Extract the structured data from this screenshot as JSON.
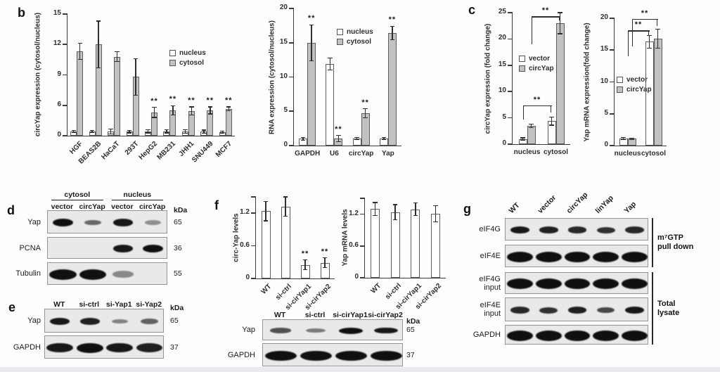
{
  "panels": {
    "b": "b",
    "c": "c",
    "d": "d",
    "e": "e",
    "f": "f",
    "g": "g"
  },
  "colors": {
    "gray_bar": "#c2c2c2",
    "white_bar": "#ffffff",
    "bar_border": "#5c5c5c",
    "axis": "#3a3a3a",
    "band": "#101010",
    "blot_bg": "#e9e9e7",
    "blot_border": "#949494",
    "bottom_strip": "#e8eaf0"
  },
  "chart_data": [
    {
      "id": "b_left",
      "type": "bar",
      "title": "",
      "xlabel": "",
      "ylabel": "circYap expression (cytosol/nucleus)",
      "yticks": [
        0,
        6,
        9,
        12,
        15
      ],
      "ylim": [
        0,
        15
      ],
      "grid": false,
      "categories": [
        "HGF",
        "BEAS2B",
        "HaCaT",
        "293T",
        "HepG2",
        "MB231",
        "JHH1",
        "SNU449",
        "MCF7"
      ],
      "series": [
        {
          "name": "nucleus",
          "color": "white",
          "values": [
            0.8,
            0.8,
            0.85,
            0.8,
            0.85,
            0.85,
            0.8,
            0.8,
            0.75
          ],
          "errors": [
            0.2,
            0.2,
            0.45,
            0.25,
            0.3,
            0.3,
            0.35,
            0.3,
            0.2
          ]
        },
        {
          "name": "cytosol",
          "color": "gray",
          "values": [
            11.3,
            12.0,
            10.8,
            8.8,
            4.6,
            5.0,
            4.9,
            5.0,
            5.3
          ],
          "errors": [
            0.8,
            2.3,
            0.5,
            1.8,
            1.0,
            0.9,
            0.8,
            0.7,
            0.4
          ]
        }
      ],
      "sig": [
        {
          "series": 1,
          "cat": 4,
          "label": "**"
        },
        {
          "series": 1,
          "cat": 5,
          "label": "**"
        },
        {
          "series": 1,
          "cat": 6,
          "label": "**"
        },
        {
          "series": 1,
          "cat": 7,
          "label": "**"
        },
        {
          "series": 1,
          "cat": 8,
          "label": "**"
        }
      ],
      "legend": [
        "nucleus",
        "cytosol"
      ],
      "legend_position": "inside right"
    },
    {
      "id": "b_right",
      "type": "bar",
      "title": "",
      "xlabel": "",
      "ylabel": "RNA expression (cytosol/nucleus)",
      "yticks": [
        0,
        5,
        10,
        15,
        20
      ],
      "ylim": [
        0,
        20
      ],
      "grid": false,
      "categories": [
        "GAPDH",
        "U6",
        "circYap",
        "Yap"
      ],
      "series": [
        {
          "name": "nucleus",
          "color": "white",
          "values": [
            1.0,
            11.9,
            1.0,
            1.0
          ],
          "errors": [
            0.2,
            0.9,
            0.15,
            0.15
          ]
        },
        {
          "name": "cytosol",
          "color": "gray",
          "values": [
            15.0,
            1.0,
            4.7,
            16.4
          ],
          "errors": [
            2.6,
            0.45,
            0.65,
            1.0
          ]
        }
      ],
      "sig": [
        {
          "series": 1,
          "cat": 0,
          "label": "**"
        },
        {
          "series": 1,
          "cat": 1,
          "label": "**"
        },
        {
          "series": 1,
          "cat": 2,
          "label": "**"
        },
        {
          "series": 1,
          "cat": 3,
          "label": "**"
        }
      ],
      "legend": [
        "nucleus",
        "cytosol"
      ],
      "legend_position": "inside top"
    },
    {
      "id": "c_left",
      "type": "bar",
      "title": "",
      "xlabel": "",
      "ylabel": "circYap expression (fold change)",
      "yticks": [
        0,
        5,
        10,
        15,
        20,
        25
      ],
      "ylim": [
        0,
        25
      ],
      "grid": false,
      "categories": [
        "nucleus",
        "cytosol"
      ],
      "series": [
        {
          "name": "vector",
          "color": "white",
          "values": [
            1.0,
            4.4
          ],
          "errors": [
            0.2,
            0.8
          ]
        },
        {
          "name": "circYap",
          "color": "gray",
          "values": [
            3.5,
            23.0
          ],
          "errors": [
            0.35,
            2.0
          ]
        }
      ],
      "sig": [],
      "brackets": [
        {
          "x1": {
            "cat": 0,
            "series": 0
          },
          "x2": {
            "cat": 1,
            "series": 0
          },
          "y": 7.4,
          "label": "**"
        },
        {
          "x1": {
            "cat": 0,
            "series": 1
          },
          "x2": {
            "cat": 1,
            "series": 1
          },
          "y": 24.3,
          "label": "**"
        }
      ],
      "legend": [
        "vector",
        "circYap"
      ],
      "legend_position": "inside middle-left"
    },
    {
      "id": "c_right",
      "type": "bar",
      "title": "",
      "xlabel": "",
      "ylabel": "Yap mRNA expression(fold change)",
      "yticks": [
        0,
        5,
        10,
        15,
        20
      ],
      "ylim": [
        0,
        20
      ],
      "grid": false,
      "categories": [
        "nucleus",
        "cytosol"
      ],
      "series": [
        {
          "name": "vector",
          "color": "white",
          "values": [
            1.1,
            16.3
          ],
          "errors": [
            0.15,
            1.0
          ]
        },
        {
          "name": "circYap",
          "color": "gray",
          "values": [
            1.05,
            16.8
          ],
          "errors": [
            0.15,
            1.5
          ]
        }
      ],
      "sig": [],
      "brackets": [
        {
          "x1": {
            "cat": 0,
            "series": -1
          },
          "x2": {
            "cat": 1,
            "series": 0
          },
          "y": 18.1,
          "label": "**"
        },
        {
          "x1": {
            "cat": 0,
            "series": 1
          },
          "x2": {
            "cat": 1,
            "series": 1
          },
          "y": 19.9,
          "label": "**"
        }
      ],
      "legend": [
        "vector",
        "circYap"
      ],
      "legend_position": "inside middle-left"
    },
    {
      "id": "f_left",
      "type": "bar",
      "title": "",
      "xlabel": "",
      "ylabel": "circ-Yap levels",
      "yticks": [
        0,
        0.6,
        1.2
      ],
      "ylim": [
        0,
        1.5
      ],
      "grid": false,
      "categories": [
        "WT",
        "si-ctrl",
        "si-cirYap1",
        "si-cirYap2"
      ],
      "series": [
        {
          "name": "",
          "color": "white",
          "values": [
            1.24,
            1.32,
            0.25,
            0.29
          ],
          "errors": [
            0.18,
            0.18,
            0.09,
            0.09
          ]
        }
      ],
      "sig": [
        {
          "series": 0,
          "cat": 2,
          "label": "**"
        },
        {
          "series": 0,
          "cat": 3,
          "label": "**"
        }
      ]
    },
    {
      "id": "f_right",
      "type": "bar",
      "title": "",
      "xlabel": "",
      "ylabel": "Yap mRNA levels",
      "yticks": [
        0,
        0.6,
        1.2
      ],
      "ylim": [
        0,
        1.5
      ],
      "grid": false,
      "categories": [
        "WT",
        "si-ctrl",
        "si-cirYap1",
        "si-cirYap2"
      ],
      "series": [
        {
          "name": "",
          "color": "white",
          "values": [
            1.3,
            1.24,
            1.29,
            1.21
          ],
          "errors": [
            0.12,
            0.14,
            0.12,
            0.15
          ]
        }
      ],
      "sig": []
    }
  ],
  "blots": {
    "d": {
      "group_headers": [
        {
          "label": "cytosol",
          "from": 0,
          "to": 1
        },
        {
          "label": "nucleus",
          "from": 2,
          "to": 3
        }
      ],
      "lanes": [
        "vector",
        "circYap",
        "vector",
        "circYap"
      ],
      "kda_header": "kDa",
      "rows": [
        {
          "label_lines": [
            "Yap"
          ],
          "kda": "65",
          "bands": [
            1,
            0.45,
            0.95,
            0.22
          ]
        },
        {
          "label_lines": [
            "PCNA"
          ],
          "kda": "36",
          "bands": [
            0,
            0,
            0.95,
            1
          ]
        },
        {
          "label_lines": [
            "Tubulin"
          ],
          "kda": "55",
          "fat": true,
          "bands": [
            1,
            1,
            0.25,
            0
          ]
        }
      ]
    },
    "e": {
      "lanes": [
        "WT",
        "si-ctrl",
        "si-Yap1",
        "si-Yap2"
      ],
      "kda_header": "kDa",
      "rows": [
        {
          "label_lines": [
            "Yap"
          ],
          "kda": "65",
          "bands": [
            0.95,
            0.9,
            0.3,
            0.5
          ]
        },
        {
          "label_lines": [
            "GAPDH"
          ],
          "kda": "37",
          "fat": true,
          "bands": [
            0.95,
            1,
            0.95,
            0.9
          ]
        }
      ]
    },
    "f": {
      "lanes": [
        "WT",
        "si-ctrl",
        "si-cirYap1",
        "si-cirYap2"
      ],
      "kda_header": "kDa",
      "rows": [
        {
          "label_lines": [
            "Yap"
          ],
          "kda": "65",
          "bands": [
            0.6,
            0.35,
            1,
            0.95
          ]
        },
        {
          "label_lines": [
            "GAPDH"
          ],
          "kda": "37",
          "fat": true,
          "bands": [
            1,
            1,
            1,
            1
          ]
        }
      ]
    },
    "g": {
      "lanes": [
        "WT",
        "vector",
        "circYap",
        "linYap",
        "Yap"
      ],
      "rows": [
        {
          "label_lines": [
            "eIF4G"
          ],
          "bands": [
            0.95,
            0.9,
            0.85,
            0.8,
            0.85
          ]
        },
        {
          "label_lines": [
            "eIF4E"
          ],
          "fat": true,
          "bands": [
            1,
            1,
            1,
            1,
            1
          ]
        },
        {
          "label_lines": [
            "eIF4G",
            "input"
          ],
          "fat": true,
          "bands": [
            1,
            1,
            1,
            1,
            1
          ]
        },
        {
          "label_lines": [
            "eIF4E",
            "input"
          ],
          "bands": [
            0.85,
            0.8,
            0.9,
            0.65,
            0.95
          ]
        },
        {
          "label_lines": [
            "GAPDH"
          ],
          "fat": true,
          "bands": [
            1,
            1,
            1,
            1,
            1
          ]
        }
      ],
      "side_groups": [
        {
          "lines": [
            "m⁷GTP",
            "pull down"
          ],
          "rows": [
            0,
            1
          ]
        },
        {
          "lines": [
            "Total",
            "lysate"
          ],
          "rows": [
            2,
            4
          ]
        }
      ]
    }
  }
}
